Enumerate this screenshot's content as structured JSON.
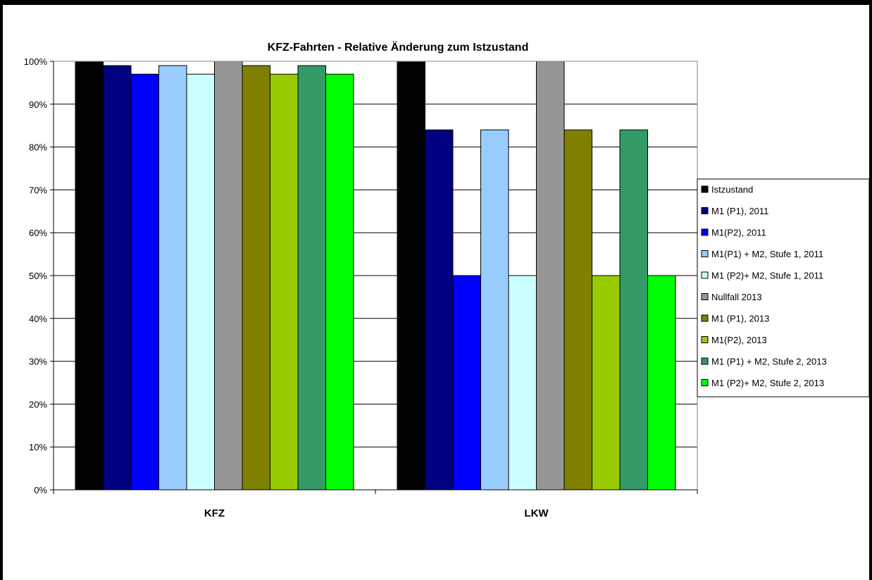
{
  "chart_data": {
    "type": "bar",
    "title": "KFZ-Fahrten - Relative Änderung zum Istzustand",
    "xlabel": "",
    "ylabel": "",
    "ylim": [
      0,
      100
    ],
    "y_ticks": [
      "0%",
      "10%",
      "20%",
      "30%",
      "40%",
      "50%",
      "60%",
      "70%",
      "80%",
      "90%",
      "100%"
    ],
    "categories": [
      "KFZ",
      "LKW"
    ],
    "grid": true,
    "legend_position": "right",
    "series": [
      {
        "name": "Istzustand",
        "color": "#000000",
        "values": [
          100,
          100
        ]
      },
      {
        "name": "M1 (P1), 2011",
        "color": "#000080",
        "values": [
          99,
          84
        ]
      },
      {
        "name": "M1(P2), 2011",
        "color": "#0000ff",
        "values": [
          97,
          50
        ]
      },
      {
        "name": "M1(P1) + M2, Stufe 1, 2011",
        "color": "#99ccff",
        "values": [
          99,
          84
        ]
      },
      {
        "name": "M1 (P2)+ M2, Stufe 1, 2011",
        "color": "#ccffff",
        "values": [
          97,
          50
        ]
      },
      {
        "name": "Nullfall 2013",
        "color": "#969696",
        "values": [
          100,
          100
        ]
      },
      {
        "name": "M1 (P1), 2013",
        "color": "#808000",
        "values": [
          99,
          84
        ]
      },
      {
        "name": "M1(P2), 2013",
        "color": "#99cc00",
        "values": [
          97,
          50
        ]
      },
      {
        "name": "M1 (P1) + M2, Stufe 2, 2013",
        "color": "#339966",
        "values": [
          99,
          84
        ]
      },
      {
        "name": "M1 (P2)+ M2, Stufe 2, 2013",
        "color": "#00ff00",
        "values": [
          97,
          50
        ]
      }
    ]
  }
}
